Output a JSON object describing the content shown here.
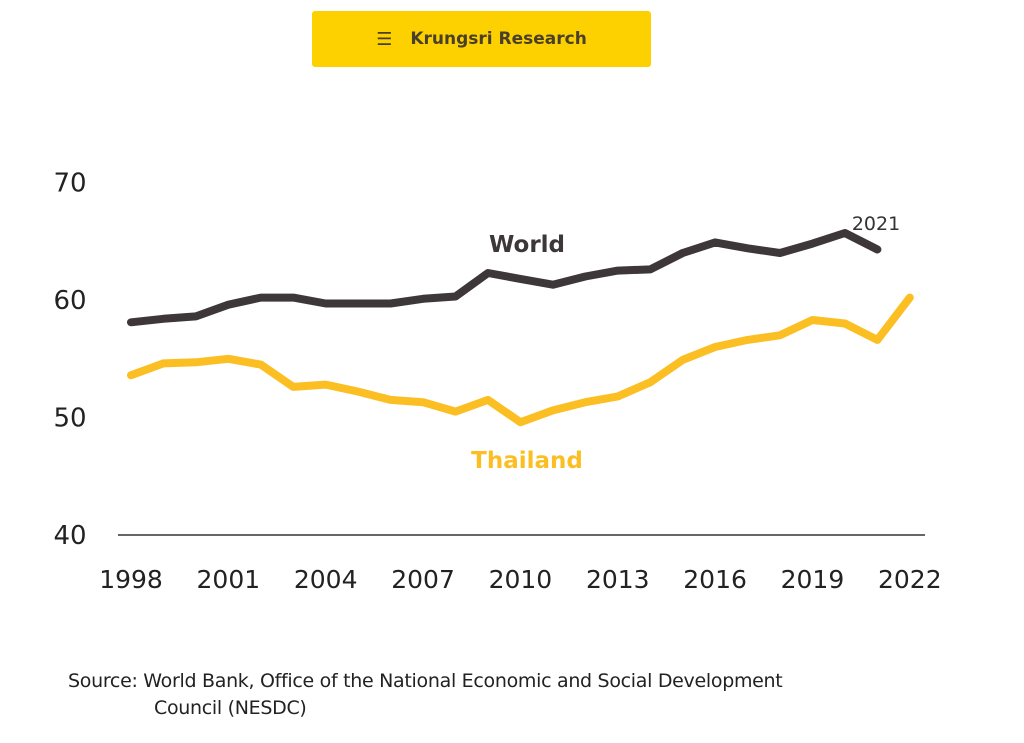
{
  "header": {
    "menu_icon": "hamburger-icon",
    "title": "Krungsri Research"
  },
  "chart_data": {
    "type": "line",
    "title": "",
    "xlabel": "",
    "ylabel": "",
    "x": [
      1998,
      1999,
      2000,
      2001,
      2002,
      2003,
      2004,
      2005,
      2006,
      2007,
      2008,
      2009,
      2010,
      2011,
      2012,
      2013,
      2014,
      2015,
      2016,
      2017,
      2018,
      2019,
      2020,
      2021,
      2022
    ],
    "ylim": [
      40,
      70
    ],
    "yticks": [
      "40",
      "50",
      "60",
      "70"
    ],
    "xticks": [
      "1998",
      "2001",
      "2004",
      "2007",
      "2010",
      "2013",
      "2016",
      "2019",
      "2022"
    ],
    "grid": false,
    "series": [
      {
        "name": "World",
        "color": "#3e3739",
        "values": [
          58.1,
          58.4,
          58.6,
          59.6,
          60.2,
          60.2,
          59.7,
          59.7,
          59.7,
          60.1,
          60.3,
          62.3,
          61.8,
          61.3,
          62.0,
          62.5,
          62.6,
          64.0,
          64.9,
          64.4,
          64.0,
          64.8,
          65.7,
          64.3,
          null
        ]
      },
      {
        "name": "Thailand",
        "color": "#fbbf24",
        "values": [
          53.6,
          54.6,
          54.7,
          55.0,
          54.5,
          52.6,
          52.8,
          52.2,
          51.5,
          51.3,
          50.5,
          51.5,
          49.6,
          50.6,
          51.3,
          51.8,
          53.0,
          54.9,
          56.0,
          56.6,
          57.0,
          58.3,
          58.0,
          56.6,
          60.2
        ]
      }
    ],
    "annotations": [
      "2021"
    ]
  },
  "source": {
    "line1": "Source: World Bank, Office of the National Economic and Social Development",
    "line2": "Council (NESDC)"
  }
}
